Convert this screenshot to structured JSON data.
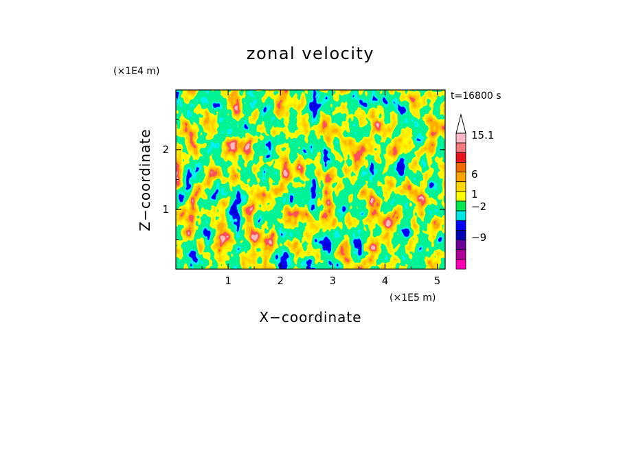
{
  "chart_data": {
    "type": "heatmap",
    "title": "zonal velocity",
    "xlabel": "X−coordinate",
    "ylabel": "Z−coordinate",
    "x_unit": "(×1E5 m)",
    "y_unit": "(×1E4 m)",
    "time_label": "t=16800 s",
    "xlim": [
      0,
      5.15
    ],
    "ylim": [
      0,
      3.0
    ],
    "x_ticks": [
      "1",
      "2",
      "3",
      "4",
      "5"
    ],
    "y_ticks": [
      "1",
      "2"
    ],
    "colorbar": {
      "labels": [
        "15.1",
        "6",
        "1",
        "−2",
        "−9"
      ],
      "colors": [
        "#ffb8c8",
        "#f47a80",
        "#e8141c",
        "#f26a00",
        "#ffa500",
        "#ffd700",
        "#ffff00",
        "#00e64d",
        "#00e5e5",
        "#0000ff",
        "#0000b4",
        "#6a0096",
        "#b0009a",
        "#ff00b4"
      ],
      "extend": "max"
    }
  }
}
